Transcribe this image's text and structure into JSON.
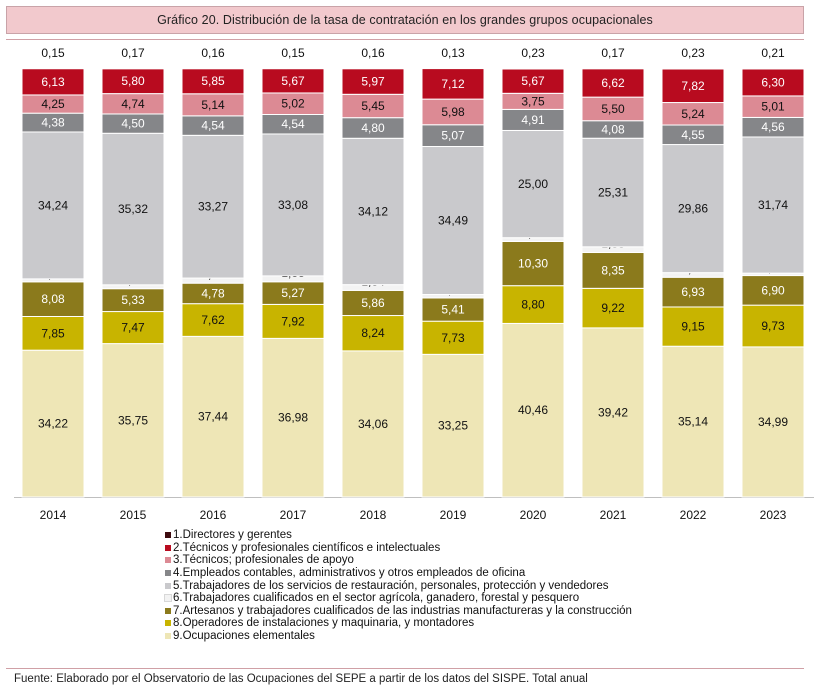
{
  "title": "Gráfico 20. Distribución de la tasa de contratación en los grandes grupos ocupacionales",
  "source": "Fuente: Elaborado por el Observatorio de las Ocupaciones del SEPE a partir de los datos del SISPE. Total anual",
  "chart_data": {
    "type": "bar",
    "stacked": true,
    "percent_stacked": true,
    "categories": [
      "2014",
      "2015",
      "2016",
      "2017",
      "2018",
      "2019",
      "2020",
      "2021",
      "2022",
      "2023"
    ],
    "series": [
      {
        "name": "9.Ocupaciones elementales",
        "color": "#eee6b6",
        "values": [
          34.22,
          35.75,
          37.44,
          36.98,
          34.06,
          33.25,
          40.46,
          39.42,
          35.14,
          34.99
        ]
      },
      {
        "name": "8.Operadores de instalaciones y maquinaria, y montadores",
        "color": "#c8b400",
        "values": [
          7.85,
          7.47,
          7.62,
          7.92,
          8.24,
          7.73,
          8.8,
          9.22,
          9.15,
          9.73
        ]
      },
      {
        "name": "7.Artesanos y trabajadores cualificados de las industrias manufactureras y la construcción",
        "color": "#8b7a1c",
        "values": [
          8.08,
          5.33,
          4.78,
          5.27,
          5.86,
          5.41,
          10.3,
          8.35,
          6.93,
          6.9
        ]
      },
      {
        "name": "6.Trabajadores cualificados en el sector agrícola, ganadero, forestal y pesquero",
        "color": "#f3f3f3",
        "values": [
          0.69,
          0.9,
          1.19,
          1.38,
          1.34,
          0.81,
          0.88,
          1.33,
          1.07,
          0.56
        ]
      },
      {
        "name": "5.Trabajadores de los servicios de restauración, personales, protección y vendedores",
        "color": "#c9c9cc",
        "values": [
          34.24,
          35.32,
          33.27,
          33.08,
          34.12,
          34.49,
          25.0,
          25.31,
          29.86,
          31.74
        ]
      },
      {
        "name": "4.Empleados contables, administrativos y otros empleados de oficina",
        "color": "#858689",
        "values": [
          4.38,
          4.5,
          4.54,
          4.54,
          4.8,
          5.07,
          4.91,
          4.08,
          4.55,
          4.56
        ]
      },
      {
        "name": "3.Técnicos; profesionales de apoyo",
        "color": "#dc8a94",
        "values": [
          4.25,
          4.74,
          5.14,
          5.02,
          5.45,
          5.98,
          3.75,
          5.5,
          5.24,
          5.01
        ]
      },
      {
        "name": "2.Técnicos y profesionales científicos e intelectuales",
        "color": "#b80b1f",
        "values": [
          6.13,
          5.8,
          5.85,
          5.67,
          5.97,
          7.12,
          5.67,
          6.62,
          7.82,
          6.3
        ]
      },
      {
        "name": "1.Directores y gerentes",
        "color": "#3d0b0f",
        "values": [
          0.15,
          0.17,
          0.16,
          0.15,
          0.16,
          0.13,
          0.23,
          0.17,
          0.23,
          0.21
        ]
      }
    ],
    "legend_order": [
      "1.Directores y gerentes",
      "2.Técnicos y profesionales científicos e intelectuales",
      "3.Técnicos; profesionales de apoyo",
      "4.Empleados contables, administrativos y otros empleados de oficina",
      "5.Trabajadores de los servicios de restauración, personales, protección y vendedores",
      "6.Trabajadores cualificados en el sector agrícola, ganadero, forestal y pesquero",
      "7.Artesanos y trabajadores cualificados de las industrias manufactureras y la construcción",
      "8.Operadores de instalaciones y maquinaria, y montadores",
      "9.Ocupaciones elementales"
    ],
    "ylim": [
      0,
      100
    ],
    "grid": false,
    "legend_position": "bottom-left"
  }
}
